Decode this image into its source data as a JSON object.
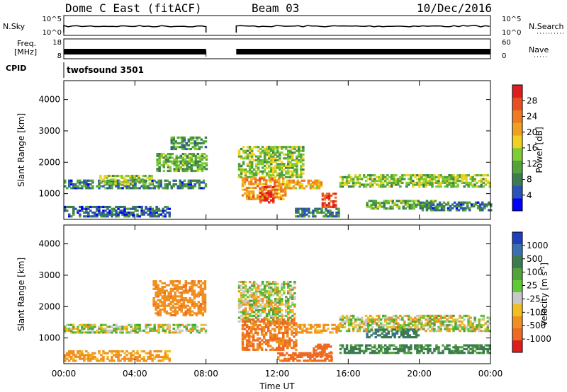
{
  "header": {
    "title": "Dome C East (fitACF)",
    "beam": "Beam 03",
    "date": "10/Dec/2016"
  },
  "noise_panel": {
    "left_label": "N.Sky",
    "right_label": "N.Search",
    "ticks_left": [
      "10^5",
      "10^0"
    ],
    "ticks_right": [
      "10^5",
      "10^0"
    ]
  },
  "freq_panel": {
    "left_label_1": "Freq.",
    "left_label_2": "[MHz]",
    "right_label": "Nave",
    "ticks_left": [
      "18",
      "8"
    ],
    "ticks_right": [
      "60",
      "0"
    ]
  },
  "cpid_panel": {
    "label": "CPID",
    "value": "twofsound 3501"
  },
  "chart_data": [
    {
      "type": "heatmap",
      "name": "power",
      "ylabel": "Slant Range [km]",
      "ylim": [
        180,
        4600
      ],
      "y_ticks": [
        "1000",
        "2000",
        "3000",
        "4000"
      ],
      "colorbar_label": "Power [dB]",
      "colorbar_ticks": [
        "4",
        "8",
        "12",
        "16",
        "20",
        "24",
        "28"
      ],
      "colorbar_colors": [
        "#0000ff",
        "#2a52b8",
        "#3c7a50",
        "#51a33a",
        "#7fcc33",
        "#f0d020",
        "#f0a020",
        "#ee7a22",
        "#e85020",
        "#e01d1d"
      ],
      "regions": [
        {
          "t0": 0.0,
          "t1": 8.0,
          "r0": 1150,
          "r1": 1450,
          "v": 8
        },
        {
          "t0": 2.0,
          "t1": 5.0,
          "r0": 1300,
          "r1": 1550,
          "v": 14
        },
        {
          "t0": 5.2,
          "t1": 8.0,
          "r0": 1700,
          "r1": 2300,
          "v": 12
        },
        {
          "t0": 6.0,
          "t1": 8.0,
          "r0": 2400,
          "r1": 2800,
          "v": 10
        },
        {
          "t0": 0.0,
          "t1": 6.0,
          "r0": 250,
          "r1": 600,
          "v": 6
        },
        {
          "t0": 9.8,
          "t1": 13.5,
          "r0": 1500,
          "r1": 2500,
          "v": 14
        },
        {
          "t0": 10.0,
          "t1": 12.5,
          "r0": 800,
          "r1": 1500,
          "v": 22
        },
        {
          "t0": 11.0,
          "t1": 11.8,
          "r0": 700,
          "r1": 1200,
          "v": 28
        },
        {
          "t0": 12.5,
          "t1": 14.5,
          "r0": 1150,
          "r1": 1450,
          "v": 20
        },
        {
          "t0": 13.0,
          "t1": 15.5,
          "r0": 250,
          "r1": 550,
          "v": 8
        },
        {
          "t0": 14.5,
          "t1": 15.3,
          "r0": 550,
          "r1": 1000,
          "v": 28
        },
        {
          "t0": 15.5,
          "t1": 24.0,
          "r0": 1200,
          "r1": 1600,
          "v": 14
        },
        {
          "t0": 17.0,
          "t1": 21.0,
          "r0": 500,
          "r1": 800,
          "v": 12
        },
        {
          "t0": 20.0,
          "t1": 24.0,
          "r0": 450,
          "r1": 700,
          "v": 8
        }
      ]
    },
    {
      "type": "heatmap",
      "name": "velocity",
      "ylabel": "Slant Range [km]",
      "ylim": [
        180,
        4600
      ],
      "y_ticks": [
        "1000",
        "2000",
        "3000",
        "4000"
      ],
      "colorbar_label": "Velocity [m s^-1]",
      "colorbar_ticks": [
        "1000",
        "500",
        "100",
        "25",
        "-25",
        "-100",
        "-500",
        "-1000"
      ],
      "colorbar_colors": [
        "#1f3fbf",
        "#3a6fb0",
        "#3c7a50",
        "#51a33a",
        "#5ecb35",
        "#c8c8c8",
        "#f0c020",
        "#f09020",
        "#ee6a22",
        "#e01d1d"
      ],
      "regions": [
        {
          "t0": 0.0,
          "t1": 8.0,
          "r0": 1150,
          "r1": 1450,
          "v": 0
        },
        {
          "t0": 5.0,
          "t1": 8.0,
          "r0": 1700,
          "r1": 2800,
          "v": -200
        },
        {
          "t0": 0.0,
          "t1": 6.0,
          "r0": 250,
          "r1": 600,
          "v": -150
        },
        {
          "t0": 9.8,
          "t1": 13.0,
          "r0": 1500,
          "r1": 2800,
          "v": 0
        },
        {
          "t0": 10.0,
          "t1": 13.0,
          "r0": 600,
          "r1": 1600,
          "v": -300
        },
        {
          "t0": 13.0,
          "t1": 15.5,
          "r0": 1150,
          "r1": 1450,
          "v": -150
        },
        {
          "t0": 12.0,
          "t1": 15.0,
          "r0": 250,
          "r1": 500,
          "v": -400
        },
        {
          "t0": 14.0,
          "t1": 15.0,
          "r0": 400,
          "r1": 800,
          "v": -600
        },
        {
          "t0": 15.5,
          "t1": 24.0,
          "r0": 1200,
          "r1": 1700,
          "v": 0
        },
        {
          "t0": 15.5,
          "t1": 24.0,
          "r0": 500,
          "r1": 800,
          "v": 200
        },
        {
          "t0": 17.0,
          "t1": 20.0,
          "r0": 1000,
          "r1": 1300,
          "v": 300
        }
      ]
    }
  ],
  "x_axis": {
    "label": "Time UT",
    "ticks": [
      "00:00",
      "04:00",
      "08:00",
      "12:00",
      "16:00",
      "20:00",
      "00:00"
    ],
    "range_hours": [
      0,
      24
    ],
    "data_gap_hours": [
      8.0,
      9.7
    ]
  }
}
